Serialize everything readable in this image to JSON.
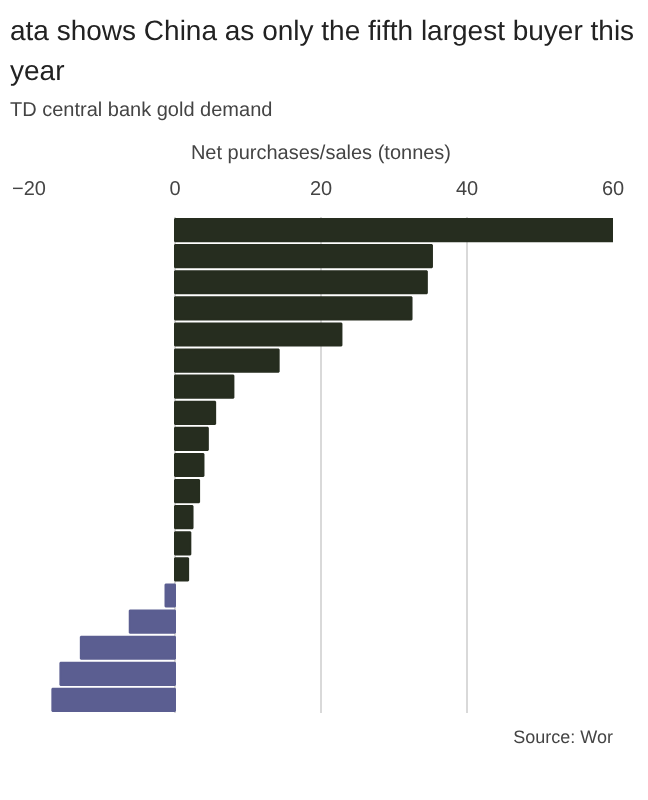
{
  "chart_data": {
    "type": "bar",
    "orientation": "horizontal",
    "title": "ata shows China as only the fifth largest buyer this year",
    "subtitle": "TD central bank gold demand",
    "xlabel": "Net purchases/sales (tonnes)",
    "categories": [
      null,
      null,
      null,
      null,
      null,
      null,
      null,
      null,
      null,
      null,
      null,
      null,
      null,
      null,
      null,
      null,
      null,
      null,
      null
    ],
    "values": [
      60,
      35.2,
      34.5,
      32.4,
      22.8,
      14.2,
      8.0,
      5.5,
      4.5,
      3.9,
      3.3,
      2.4,
      2.1,
      1.8,
      -1.3,
      -6.2,
      -12.9,
      -15.7,
      -16.8
    ],
    "colors": [
      "#262d1f",
      "#262d1f",
      "#262d1f",
      "#262d1f",
      "#262d1f",
      "#262d1f",
      "#262d1f",
      "#262d1f",
      "#262d1f",
      "#262d1f",
      "#262d1f",
      "#262d1f",
      "#262d1f",
      "#262d1f",
      "#5b5e91",
      "#5b5e91",
      "#5b5e91",
      "#5b5e91",
      "#5b5e91"
    ],
    "xlim": [
      -20,
      60
    ],
    "xticks": [
      -20,
      0,
      20,
      40,
      60
    ],
    "grid": "x",
    "annotations": [
      "Source: Wor"
    ]
  }
}
